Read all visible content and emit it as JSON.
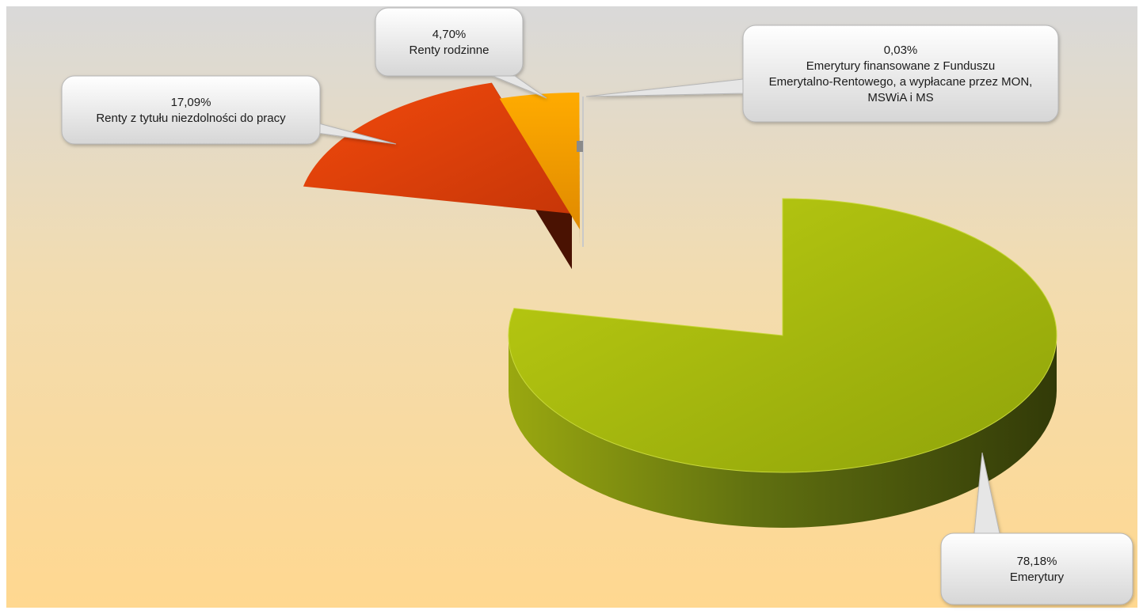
{
  "chart_data": {
    "type": "pie",
    "style": "3d-exploded",
    "title": "",
    "slices": [
      {
        "label": "Emerytury",
        "value": 78.18,
        "value_label": "78,18%",
        "color": "#9bb30e"
      },
      {
        "label": "Renty z tytułu niezdolności do pracy",
        "value": 17.09,
        "value_label": "17,09%",
        "color": "#e2410b"
      },
      {
        "label": "Renty rodzinne",
        "value": 4.7,
        "value_label": "4,70%",
        "color": "#f5a000"
      },
      {
        "label": "Emerytury finansowane z Funduszu Emerytalno-Rentowego, a wypłacane przez MON, MSWiA i MS",
        "value": 0.03,
        "value_label": "0,03%",
        "color": "#bfbfbf"
      }
    ],
    "legend": "none",
    "background": {
      "top": "#dcdcdc",
      "bottom": "#ffd98c"
    }
  }
}
